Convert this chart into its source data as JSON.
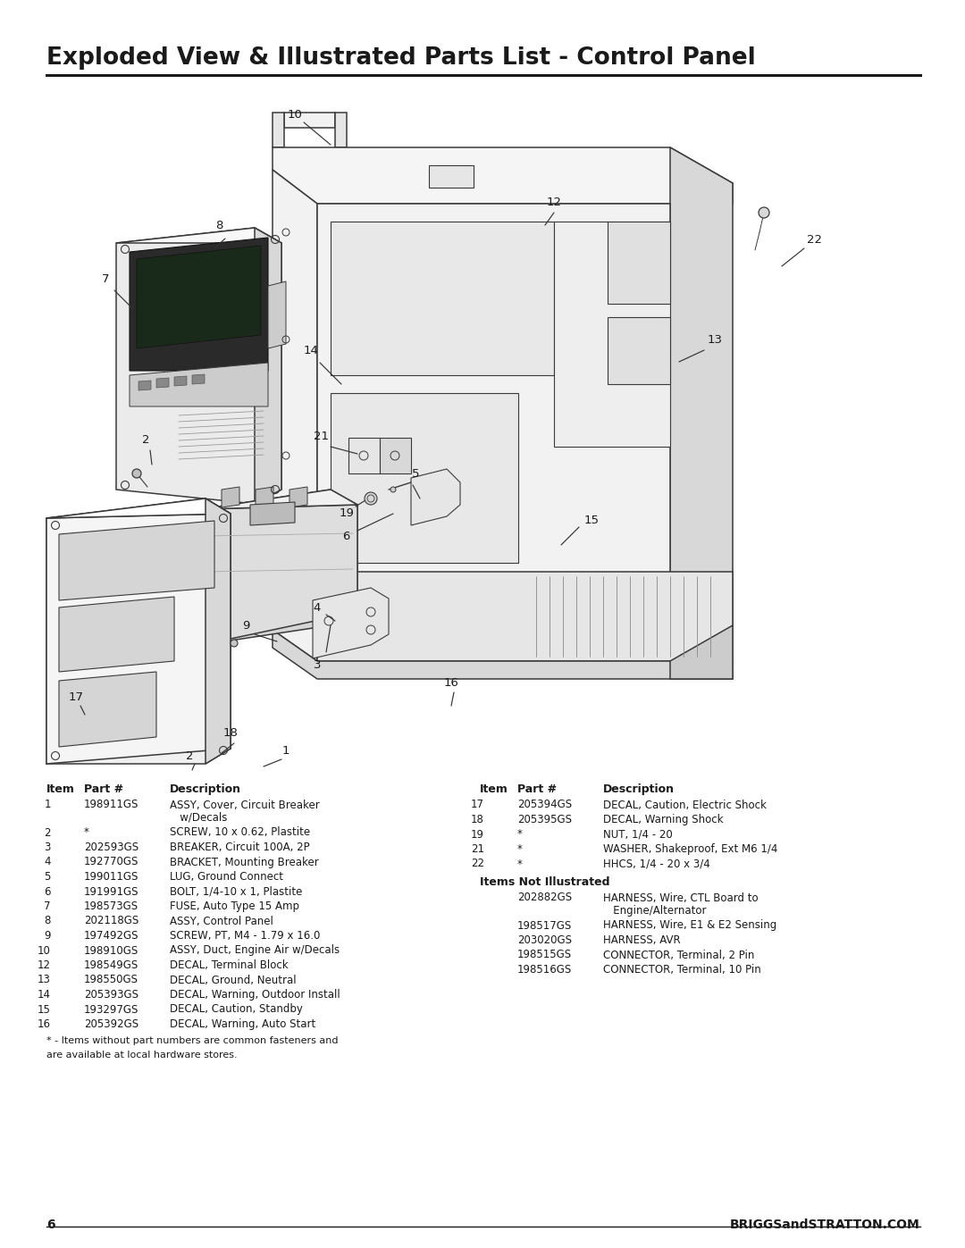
{
  "title": "Exploded View & Illustrated Parts List - Control Panel",
  "title_fontsize": 19,
  "background_color": "#ffffff",
  "text_color": "#1a1a1a",
  "page_number": "6",
  "website": "BRIGGSandSTRATTON.COM",
  "left_table": [
    [
      "1",
      "198911GS",
      "ASSY, Cover, Circuit Breaker",
      "   w/Decals"
    ],
    [
      "2",
      "*",
      "SCREW, 10 x 0.62, Plastite",
      ""
    ],
    [
      "3",
      "202593GS",
      "BREAKER, Circuit 100A, 2P",
      ""
    ],
    [
      "4",
      "192770GS",
      "BRACKET, Mounting Breaker",
      ""
    ],
    [
      "5",
      "199011GS",
      "LUG, Ground Connect",
      ""
    ],
    [
      "6",
      "191991GS",
      "BOLT, 1/4-10 x 1, Plastite",
      ""
    ],
    [
      "7",
      "198573GS",
      "FUSE, Auto Type 15 Amp",
      ""
    ],
    [
      "8",
      "202118GS",
      "ASSY, Control Panel",
      ""
    ],
    [
      "9",
      "197492GS",
      "SCREW, PT, M4 - 1.79 x 16.0",
      ""
    ],
    [
      "10",
      "198910GS",
      "ASSY, Duct, Engine Air w/Decals",
      ""
    ],
    [
      "12",
      "198549GS",
      "DECAL, Terminal Block",
      ""
    ],
    [
      "13",
      "198550GS",
      "DECAL, Ground, Neutral",
      ""
    ],
    [
      "14",
      "205393GS",
      "DECAL, Warning, Outdoor Install",
      ""
    ],
    [
      "15",
      "193297GS",
      "DECAL, Caution, Standby",
      ""
    ],
    [
      "16",
      "205392GS",
      "DECAL, Warning, Auto Start",
      ""
    ]
  ],
  "right_table": [
    [
      "17",
      "205394GS",
      "DECAL, Caution, Electric Shock"
    ],
    [
      "18",
      "205395GS",
      "DECAL, Warning Shock"
    ],
    [
      "19",
      "*",
      "NUT, 1/4 - 20"
    ],
    [
      "21",
      "*",
      "WASHER, Shakeproof, Ext M6 1/4"
    ],
    [
      "22",
      "*",
      "HHCS, 1/4 - 20 x 3/4"
    ]
  ],
  "not_illustrated_header": "Items Not Illustrated",
  "not_illustrated": [
    [
      "202882GS",
      "HARNESS, Wire, CTL Board to",
      "   Engine/Alternator"
    ],
    [
      "198517GS",
      "HARNESS, Wire, E1 & E2 Sensing",
      ""
    ],
    [
      "203020GS",
      "HARNESS, AVR",
      ""
    ],
    [
      "198515GS",
      "CONNECTOR, Terminal, 2 Pin",
      ""
    ],
    [
      "198516GS",
      "CONNECTOR, Terminal, 10 Pin",
      ""
    ]
  ],
  "footnote_line1": "* - Items without part numbers are common fasteners and",
  "footnote_line2": "are available at local hardware stores."
}
